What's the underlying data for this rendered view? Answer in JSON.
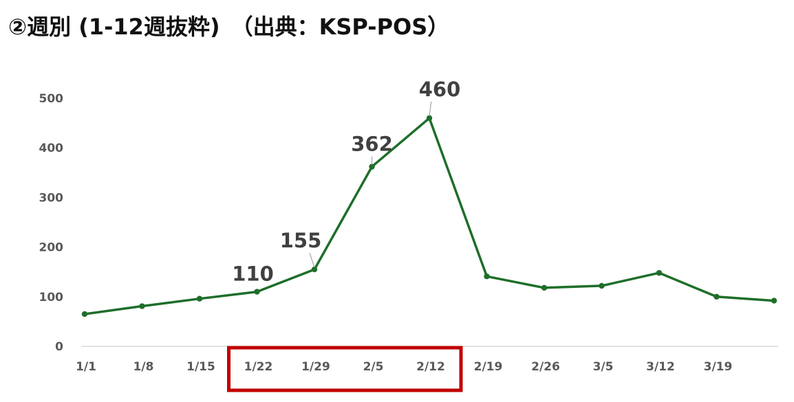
{
  "title": "②週別 (1-12週抜粋)　（出典：KSP-POS）",
  "colors": {
    "line": "#1e6e2a",
    "highlight_box": "#c00000",
    "axis": "#d9d9d9",
    "tick_text": "#595959",
    "label_text": "#404040"
  },
  "chart_data": {
    "type": "line",
    "title": "②週別 (1-12週抜粋)　（出典：KSP-POS）",
    "xlabel": "",
    "ylabel": "",
    "categories": [
      "1/1",
      "1/8",
      "1/15",
      "1/22",
      "1/29",
      "2/5",
      "2/12",
      "2/19",
      "2/26",
      "3/5",
      "3/12",
      "3/19",
      ""
    ],
    "series": [
      {
        "values": [
          65,
          81,
          96,
          110,
          155,
          362,
          460,
          141,
          118,
          122,
          148,
          100,
          92
        ]
      }
    ],
    "data_labels": [
      {
        "index": 3,
        "text": "110"
      },
      {
        "index": 4,
        "text": "155"
      },
      {
        "index": 5,
        "text": "362"
      },
      {
        "index": 6,
        "text": "460"
      }
    ],
    "yticks": [
      "0",
      "100",
      "200",
      "300",
      "400",
      "500"
    ],
    "ylim": [
      0,
      500
    ],
    "grid": false,
    "legend": "none",
    "highlight": {
      "from_category": "1/22",
      "to_category": "2/12"
    }
  }
}
